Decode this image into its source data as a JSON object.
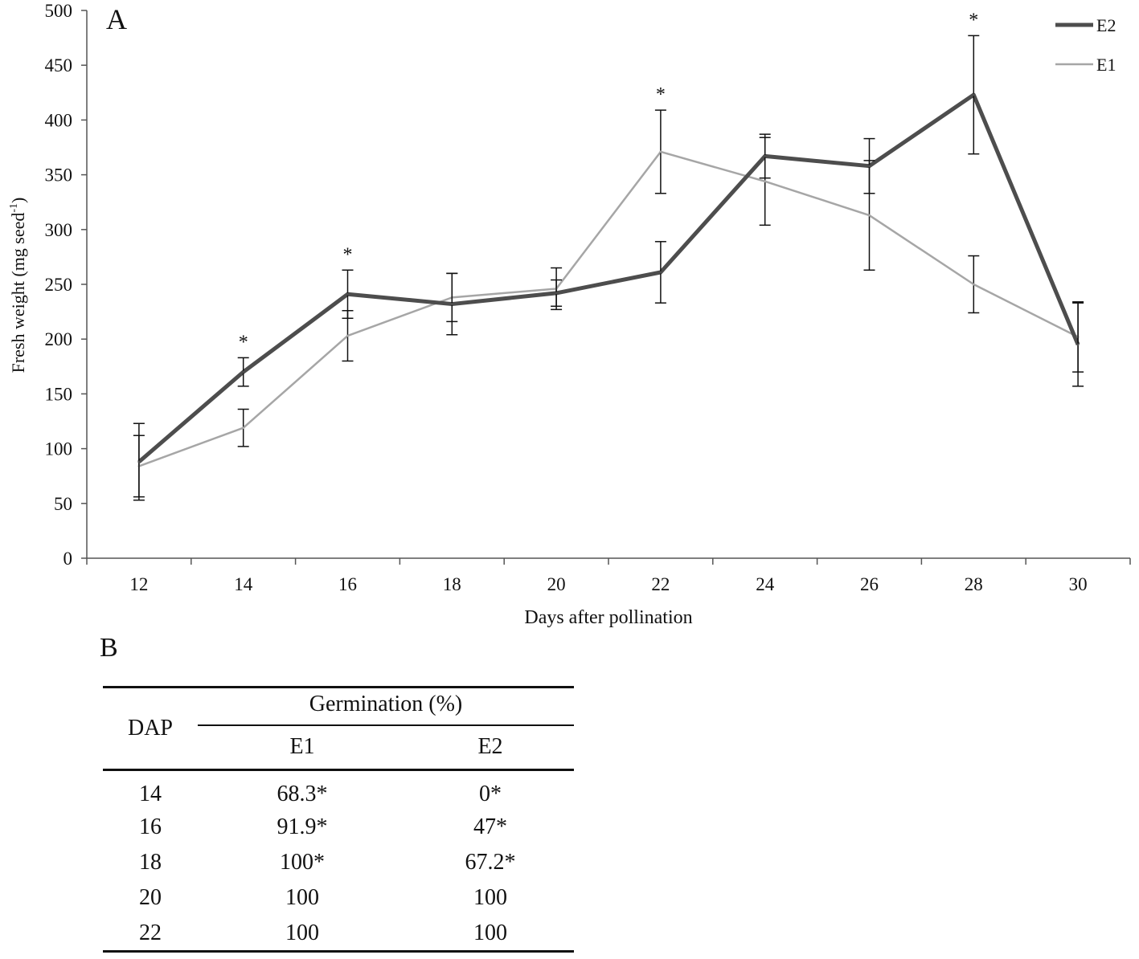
{
  "chart_data": {
    "type": "line",
    "panel_label": "A",
    "xlabel": "Days after pollination",
    "ylabel": "Fresh weight (mg seed",
    "ylabel_sup": "-1",
    "ylabel_end": ")",
    "x": [
      12,
      14,
      16,
      18,
      20,
      22,
      24,
      26,
      28,
      30
    ],
    "x_tick_labels": [
      "12",
      "14",
      "16",
      "18",
      "20",
      "22",
      "24",
      "26",
      "28",
      "30"
    ],
    "ylim": [
      0,
      500
    ],
    "y_ticks": [
      0,
      50,
      100,
      150,
      200,
      250,
      300,
      350,
      400,
      450,
      500
    ],
    "y_tick_labels": [
      "0",
      "50",
      "100",
      "150",
      "200",
      "250",
      "300",
      "350",
      "400",
      "450",
      "500"
    ],
    "series": [
      {
        "name": "E2",
        "color": "#4d4d4d",
        "values": [
          88,
          170,
          241,
          232,
          242,
          261,
          367,
          358,
          423,
          195
        ],
        "err": [
          35,
          13,
          22,
          28,
          12,
          28,
          20,
          25,
          54,
          38
        ]
      },
      {
        "name": "E1",
        "color": "#a6a6a6",
        "values": [
          84,
          119,
          203,
          238,
          246,
          371,
          344,
          313,
          250,
          202
        ],
        "err": [
          28,
          17,
          23,
          22,
          19,
          38,
          40,
          50,
          26,
          32
        ]
      }
    ],
    "significance_marker": "*",
    "significant_x": [
      14,
      16,
      22,
      28
    ],
    "legend": [
      "E2",
      "E1"
    ]
  },
  "table": {
    "panel_label": "B",
    "header_group": "Germination (%)",
    "row_header": "DAP",
    "columns": [
      "E1",
      "E2"
    ],
    "rows": [
      {
        "dap": "14",
        "e1": "68.3*",
        "e2": "0*"
      },
      {
        "dap": "16",
        "e1": "91.9*",
        "e2": "47*"
      },
      {
        "dap": "18",
        "e1": "100*",
        "e2": "67.2*"
      },
      {
        "dap": "20",
        "e1": "100",
        "e2": "100"
      },
      {
        "dap": "22",
        "e1": "100",
        "e2": "100"
      }
    ]
  }
}
